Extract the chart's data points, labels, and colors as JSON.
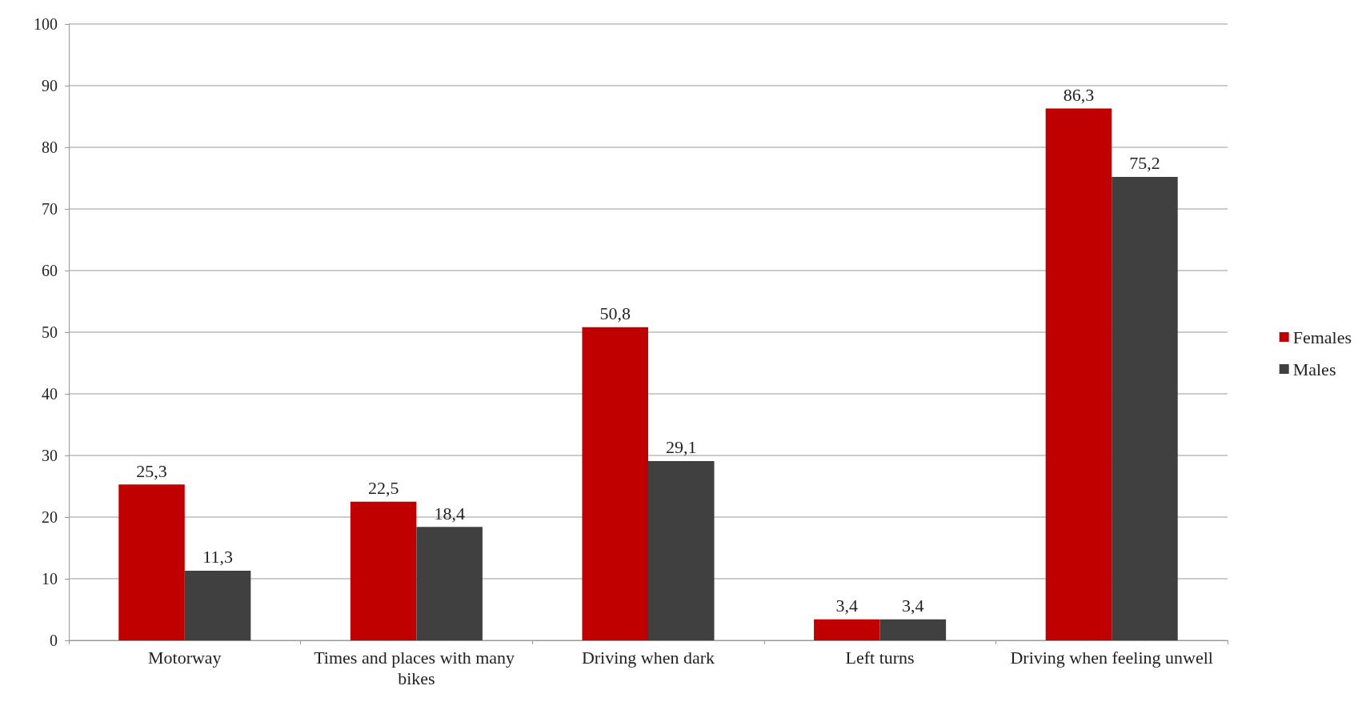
{
  "chart_data": {
    "type": "bar",
    "categories": [
      "Motorway",
      "Times and places with many bikes",
      "Driving when dark",
      "Left turns",
      "Driving when feeling unwell"
    ],
    "series": [
      {
        "name": "Females",
        "color": "#c00000",
        "values": [
          25.3,
          22.5,
          50.8,
          3.4,
          86.3
        ],
        "value_labels": [
          "25,3",
          "22,5",
          "50,8",
          "3,4",
          "86,3"
        ]
      },
      {
        "name": "Males",
        "color": "#404040",
        "values": [
          11.3,
          18.4,
          29.1,
          3.4,
          75.2
        ],
        "value_labels": [
          "11,3",
          "18,4",
          "29,1",
          "3,4",
          "75,2"
        ]
      }
    ],
    "ylim": [
      0,
      100
    ],
    "yticks": [
      0,
      10,
      20,
      30,
      40,
      50,
      60,
      70,
      80,
      90,
      100
    ],
    "grid": "y",
    "legend": "right"
  }
}
